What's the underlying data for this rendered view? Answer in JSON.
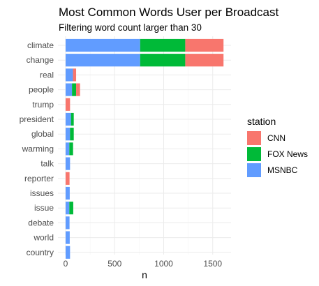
{
  "chart_data": {
    "type": "bar",
    "orientation": "horizontal",
    "stacked": true,
    "title": "Most Common Words User per Broadcast",
    "subtitle": "Filtering word count larger than 30",
    "xlabel": "n",
    "ylabel": "",
    "xlim": [
      0,
      1650
    ],
    "xticks": [
      0,
      500,
      1000,
      1500
    ],
    "grid": true,
    "categories": [
      "climate",
      "change",
      "real",
      "people",
      "trump",
      "president",
      "global",
      "warming",
      "talk",
      "reporter",
      "issues",
      "issue",
      "debate",
      "world",
      "country"
    ],
    "stack_order": [
      "MSNBC",
      "FOX News",
      "CNN"
    ],
    "series": [
      {
        "name": "CNN",
        "color": "#F8766D",
        "values": [
          390,
          390,
          32,
          40,
          45,
          0,
          0,
          0,
          0,
          40,
          0,
          0,
          0,
          0,
          0
        ]
      },
      {
        "name": "FOX News",
        "color": "#00BA38",
        "values": [
          460,
          460,
          0,
          42,
          0,
          28,
          38,
          38,
          0,
          0,
          0,
          40,
          0,
          0,
          0
        ]
      },
      {
        "name": "MSNBC",
        "color": "#619CFF",
        "values": [
          760,
          760,
          75,
          65,
          0,
          55,
          45,
          38,
          45,
          0,
          42,
          38,
          40,
          42,
          45
        ]
      }
    ],
    "legend": {
      "title": "station",
      "position": "right",
      "entries": [
        "CNN",
        "FOX News",
        "MSNBC"
      ]
    }
  }
}
